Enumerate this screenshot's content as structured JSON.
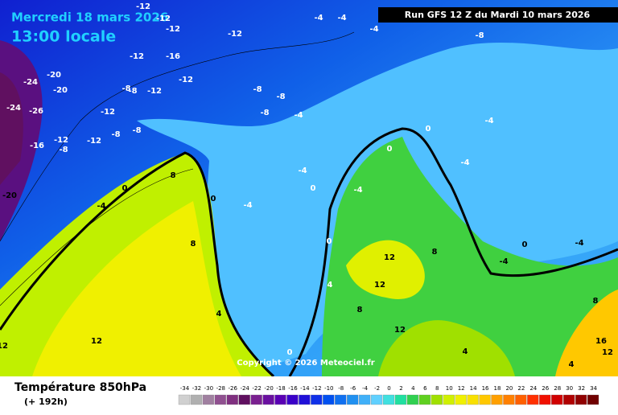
{
  "header": {
    "date": "Mercredi 18 mars 2026",
    "time": "13:00 locale",
    "run": "Run GFS 12 Z du Mardi 10 mars 2026",
    "copyright": "Copyright © 2026 Meteociel.fr"
  },
  "legend": {
    "title": "Température 850hPa",
    "lead": "(+ 192h)"
  },
  "scale": {
    "values": [
      -34,
      -32,
      -30,
      -28,
      -26,
      -24,
      -22,
      -20,
      -18,
      -16,
      -14,
      -12,
      -10,
      -8,
      -6,
      -4,
      -2,
      0,
      2,
      4,
      6,
      8,
      10,
      12,
      14,
      16,
      18,
      20,
      22,
      24,
      26,
      28,
      30,
      32,
      34
    ],
    "colors": [
      "#d0d0d0",
      "#b0b0b0",
      "#a080a0",
      "#905090",
      "#803080",
      "#601060",
      "#7a2090",
      "#6a10a0",
      "#5a00b4",
      "#3a00c8",
      "#2010d8",
      "#1030e8",
      "#0050f0",
      "#1070f0",
      "#2090f0",
      "#40b0f8",
      "#60d0ff",
      "#40e0e0",
      "#20e0a0",
      "#30d050",
      "#60d020",
      "#a0e000",
      "#d0f000",
      "#f0f000",
      "#f8e000",
      "#ffc800",
      "#ffa000",
      "#ff8000",
      "#ff6000",
      "#ff3000",
      "#f01000",
      "#d00000",
      "#b00000",
      "#900000",
      "#700000"
    ]
  },
  "map_labels": [
    "-12",
    "-12",
    "-12",
    "-12",
    "-12",
    "-16",
    "-12",
    "-12",
    "-8",
    "-8",
    "-20",
    "-24",
    "-20",
    "-24",
    "-26",
    "-12",
    "-8",
    "-8",
    "-12",
    "-12",
    "-16",
    "-8",
    "-20",
    "-4",
    "-4",
    "-4",
    "-8",
    "-8",
    "-8",
    "-8",
    "-4",
    "-4",
    "-4",
    "0",
    "-4",
    "8",
    "8",
    "0",
    "0",
    "0",
    "4",
    "0",
    "0",
    "-4",
    "-4",
    "-4",
    "0",
    "-4",
    "-4",
    "12",
    "12",
    "8",
    "12",
    "8",
    "12",
    "8",
    "16",
    "12",
    "0",
    "4",
    "4",
    "12",
    "4"
  ]
}
